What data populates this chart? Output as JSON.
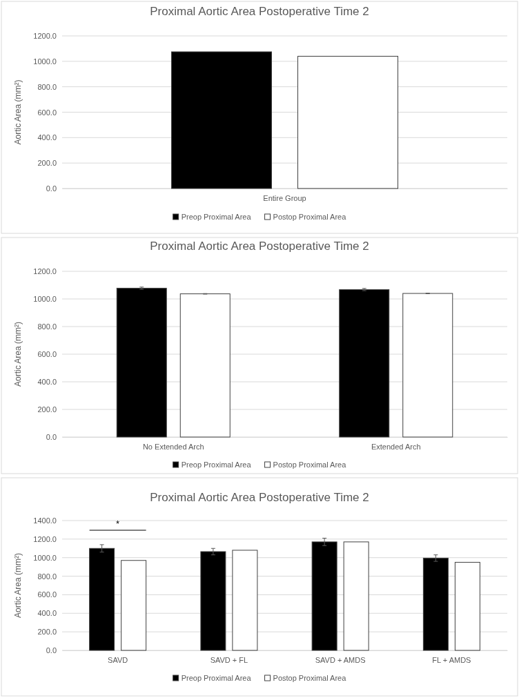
{
  "chart_data": [
    {
      "type": "bar",
      "title": "Proximal Aortic Area Postoperative Time 2",
      "ylabel": "Aortic Area (mm²)",
      "categories": [
        "Entire Group"
      ],
      "series": [
        {
          "name": "Preop Proximal Area",
          "color": "#000000",
          "values": [
            1075
          ]
        },
        {
          "name": "Postop Proximal Area",
          "color": "#ffffff",
          "values": [
            1040
          ]
        }
      ],
      "ylim": [
        0,
        1200
      ],
      "yticks": [
        {
          "value": 0,
          "label": "0.0"
        },
        {
          "value": 200,
          "label": "200.0"
        },
        {
          "value": 400,
          "label": "400.0"
        },
        {
          "value": 600,
          "label": "600.0"
        },
        {
          "value": 800,
          "label": "800.0"
        },
        {
          "value": 1000,
          "label": "1000.0"
        },
        {
          "value": 1200,
          "label": "1200.0"
        }
      ],
      "grid": "y",
      "legend": "bottom"
    },
    {
      "type": "bar",
      "title": "Proximal Aortic Area Postoperative Time 2",
      "ylabel": "Aortic Area (mm²)",
      "categories": [
        "No Extended Arch",
        "Extended Arch"
      ],
      "series": [
        {
          "name": "Preop Proximal Area",
          "color": "#000000",
          "values": [
            1078,
            1068
          ],
          "errors": [
            8,
            8
          ]
        },
        {
          "name": "Postop Proximal Area",
          "color": "#ffffff",
          "values": [
            1037,
            1040
          ],
          "errors": [
            2,
            2
          ]
        }
      ],
      "ylim": [
        0,
        1200
      ],
      "yticks": [
        {
          "value": 0,
          "label": "0.0"
        },
        {
          "value": 200,
          "label": "200.0"
        },
        {
          "value": 400,
          "label": "400.0"
        },
        {
          "value": 600,
          "label": "600.0"
        },
        {
          "value": 800,
          "label": "800.0"
        },
        {
          "value": 1000,
          "label": "1000.0"
        },
        {
          "value": 1200,
          "label": "1200.0"
        }
      ],
      "grid": "y",
      "legend": "bottom"
    },
    {
      "type": "bar",
      "title": "Proximal Aortic Area Postoperative Time 2",
      "ylabel": "Aortic Area (mm²)",
      "categories": [
        "SAVD",
        "SAVD + FL",
        "SAVD + AMDS",
        "FL + AMDS"
      ],
      "series": [
        {
          "name": "Preop Proximal Area",
          "color": "#000000",
          "values": [
            1100,
            1065,
            1170,
            995
          ],
          "errors": [
            40,
            35,
            40,
            35
          ]
        },
        {
          "name": "Postop Proximal Area",
          "color": "#ffffff",
          "values": [
            970,
            1080,
            1170,
            950
          ]
        }
      ],
      "ylim": [
        0,
        1400
      ],
      "yticks": [
        {
          "value": 0,
          "label": "0.0"
        },
        {
          "value": 200,
          "label": "200.0"
        },
        {
          "value": 400,
          "label": "400.0"
        },
        {
          "value": 600,
          "label": "600.0"
        },
        {
          "value": 800,
          "label": "800.0"
        },
        {
          "value": 1000,
          "label": "1000.0"
        },
        {
          "value": 1200,
          "label": "1200.0"
        },
        {
          "value": 1400,
          "label": "1400.0"
        }
      ],
      "grid": "y",
      "legend": "bottom",
      "annotations": [
        "*"
      ]
    }
  ]
}
